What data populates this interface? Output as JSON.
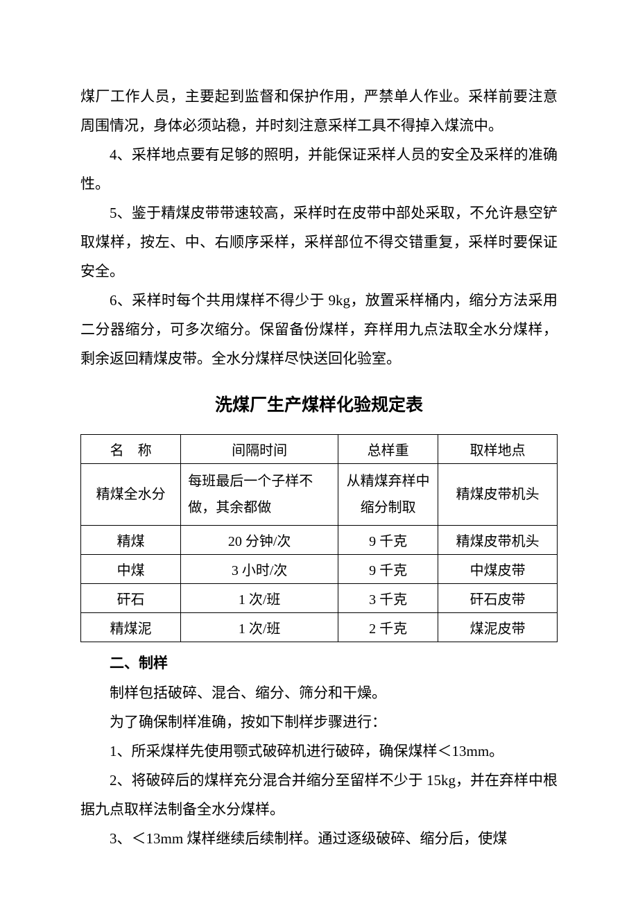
{
  "paragraphs": {
    "p1": "煤厂工作人员，主要起到监督和保护作用，严禁单人作业。采样前要注意周围情况，身体必须站稳，并时刻注意采样工具不得掉入煤流中。",
    "p2": "4、采样地点要有足够的照明，并能保证采样人员的安全及采样的准确性。",
    "p3": "5、鉴于精煤皮带带速较高，采样时在皮带中部处采取，不允许悬空铲取煤样，按左、中、右顺序采样，采样部位不得交错重复，采样时要保证安全。",
    "p4": "6、采样时每个共用煤样不得少于 9kg，放置采样桶内，缩分方法采用二分器缩分，可多次缩分。保留备份煤样，弃样用九点法取全水分煤样，剩余返回精煤皮带。全水分煤样尽快送回化验室。"
  },
  "table_title": "洗煤厂生产煤样化验规定表",
  "table": {
    "headers": {
      "name": "名　称",
      "interval": "间隔时间",
      "weight": "总样重",
      "location": "取样地点"
    },
    "rows": [
      {
        "name": "精煤全水分",
        "interval": "每班最后一个子样不做，其余都做",
        "weight": "从精煤弃样中缩分制取",
        "location": "精煤皮带机头"
      },
      {
        "name": "精煤",
        "interval": "20 分钟/次",
        "weight": "9 千克",
        "location": "精煤皮带机头"
      },
      {
        "name": "中煤",
        "interval": "3 小时/次",
        "weight": "9 千克",
        "location": "中煤皮带"
      },
      {
        "name": "矸石",
        "interval": "1 次/班",
        "weight": "3 千克",
        "location": "矸石皮带"
      },
      {
        "name": "精煤泥",
        "interval": "1 次/班",
        "weight": "2 千克",
        "location": "煤泥皮带"
      }
    ]
  },
  "section2": {
    "head": "二、制样",
    "p1": "制样包括破碎、混合、缩分、筛分和干燥。",
    "p2": "为了确保制样准确，按如下制样步骤进行：",
    "p3": "1、所采煤样先使用颚式破碎机进行破碎，确保煤样＜13mm。",
    "p4": "2、将破碎后的煤样充分混合并缩分至留样不少于 15kg，并在弃样中根据九点取样法制备全水分煤样。",
    "p5": "3、＜13mm 煤样继续后续制样。通过逐级破碎、缩分后，使煤"
  }
}
